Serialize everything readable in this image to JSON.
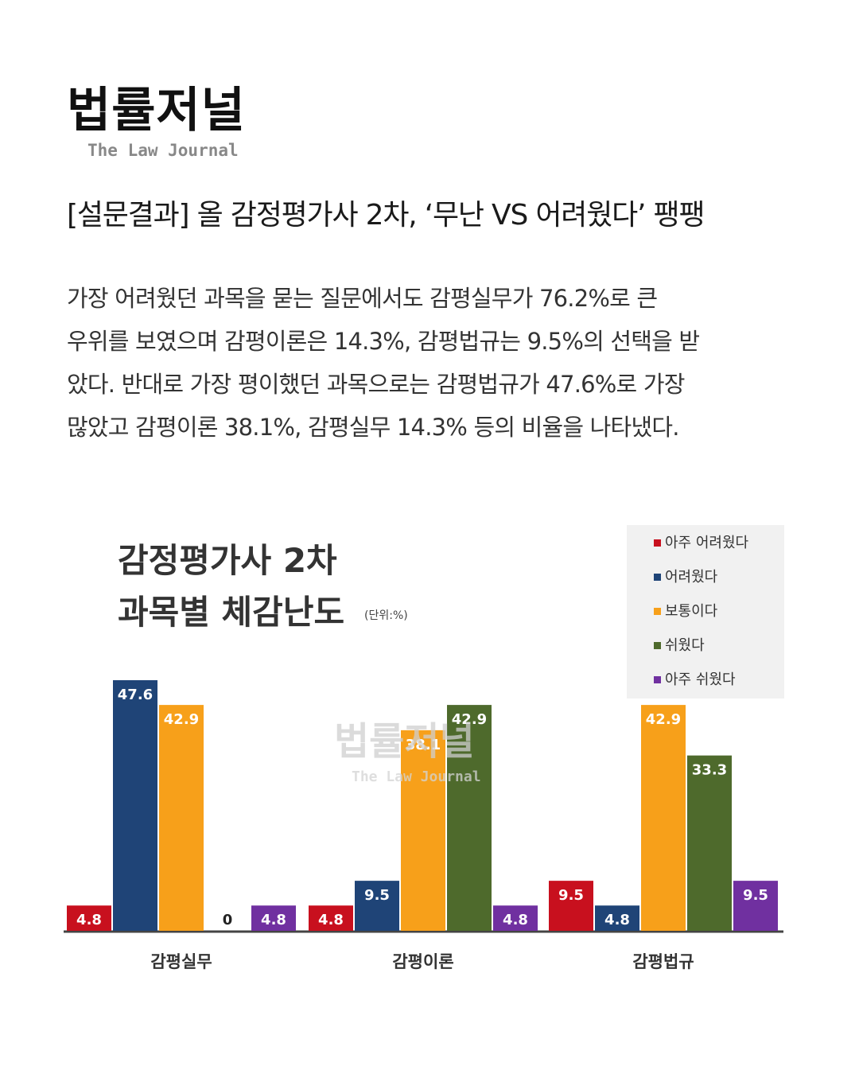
{
  "logo": {
    "main": "법률저널",
    "sub": "The Law Journal"
  },
  "headline": "[설문결과] 올 감정평가사 2차, ‘무난 VS 어려웠다’ 팽팽",
  "body": {
    "lines": [
      "가장 어려웠던 과목을 묻는 질문에서도 감평실무가 76.2%로 큰",
      "우위를 보였으며 감평이론은 14.3%, 감평법규는 9.5%의 선택을 받",
      "았다. 반대로 가장 평이했던 과목으로는 감평법규가 47.6%로 가장",
      "많았고 감평이론 38.1%, 감평실무 14.3% 등의 비율을 나타냈다."
    ]
  },
  "chart_data": {
    "type": "bar",
    "title": [
      "감정평가사 2차",
      "과목별 체감난도"
    ],
    "unit": "(단위:%)",
    "categories": [
      "감평실무",
      "감평이론",
      "감평법규"
    ],
    "series": [
      {
        "name": "아주 어려웠다",
        "color": "#c8101e",
        "values": [
          4.8,
          4.8,
          9.5
        ]
      },
      {
        "name": "어려웠다",
        "color": "#1f4477",
        "values": [
          47.6,
          9.5,
          4.8
        ]
      },
      {
        "name": "보통이다",
        "color": "#f7a01a",
        "values": [
          42.9,
          38.1,
          42.9
        ]
      },
      {
        "name": "쉬웠다",
        "color": "#4e6a2c",
        "values": [
          0,
          42.9,
          33.3
        ]
      },
      {
        "name": "아주 쉬웠다",
        "color": "#7030a0",
        "values": [
          4.8,
          4.8,
          9.5
        ]
      }
    ],
    "value_labels": [
      [
        "4.8",
        "47.6",
        "42.9",
        "0",
        "4.8"
      ],
      [
        "4.8",
        "9.5",
        "38.1",
        "42.9",
        "4.8"
      ],
      [
        "9.5",
        "4.8",
        "42.9",
        "33.3",
        "9.5"
      ]
    ],
    "legend_position": "top-right",
    "grid": false,
    "ylim": [
      0,
      50
    ],
    "watermark": {
      "main": "법률저널",
      "sub": "The Law Journal"
    }
  }
}
